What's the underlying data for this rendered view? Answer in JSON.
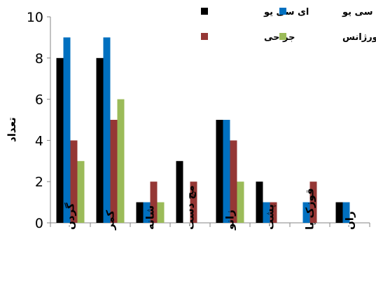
{
  "chart_data": {
    "type": "bar",
    "title": "",
    "xlabel": "",
    "ylabel": "تعداد",
    "ylim": [
      0,
      10
    ],
    "yticks": [
      0,
      2,
      4,
      6,
      8,
      10
    ],
    "grid": false,
    "legend_position": "top-right",
    "categories": [
      "گردن",
      "کمر",
      "شانه",
      "مچ دست",
      "زانو",
      "پشت",
      "قوزک پا",
      "ران"
    ],
    "series": [
      {
        "name": "ای سی یو",
        "color": "#000000",
        "values": [
          8,
          8,
          1,
          3,
          5,
          2,
          0,
          1
        ]
      },
      {
        "name": "سی سی یو",
        "color": "#0070C0",
        "values": [
          9,
          9,
          1,
          0,
          5,
          1,
          1,
          1
        ]
      },
      {
        "name": "جراحی",
        "color": "#953735",
        "values": [
          4,
          5,
          2,
          2,
          4,
          1,
          2,
          0
        ]
      },
      {
        "name": "اورژانس",
        "color": "#9BBB59",
        "values": [
          3,
          6,
          1,
          0,
          2,
          0,
          0,
          0
        ]
      }
    ]
  }
}
